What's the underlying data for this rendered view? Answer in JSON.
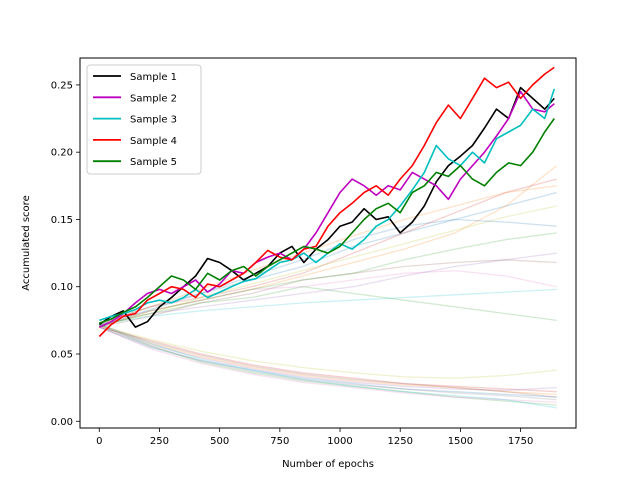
{
  "chart_data": {
    "type": "line",
    "xlabel": "Number of epochs",
    "ylabel": "Accumulated score",
    "xlim": [
      -80,
      1980
    ],
    "ylim": [
      -0.005,
      0.27
    ],
    "xticks": [
      0,
      250,
      500,
      750,
      1000,
      1250,
      1500,
      1750
    ],
    "yticks": [
      0.0,
      0.05,
      0.1,
      0.15,
      0.2,
      0.25
    ],
    "legend_position": "top-left",
    "grid": false,
    "series": [
      {
        "name": "Sample 1",
        "color": "#000000",
        "x": [
          0,
          50,
          100,
          150,
          200,
          250,
          300,
          350,
          400,
          450,
          500,
          550,
          600,
          650,
          700,
          750,
          800,
          850,
          900,
          950,
          1000,
          1050,
          1100,
          1150,
          1200,
          1250,
          1300,
          1350,
          1400,
          1450,
          1500,
          1550,
          1600,
          1650,
          1700,
          1750,
          1800,
          1850,
          1890
        ],
        "values": [
          0.072,
          0.078,
          0.082,
          0.07,
          0.074,
          0.085,
          0.092,
          0.1,
          0.108,
          0.121,
          0.118,
          0.112,
          0.105,
          0.11,
          0.115,
          0.125,
          0.13,
          0.118,
          0.128,
          0.135,
          0.145,
          0.148,
          0.158,
          0.15,
          0.152,
          0.14,
          0.148,
          0.16,
          0.178,
          0.19,
          0.197,
          0.205,
          0.218,
          0.232,
          0.225,
          0.248,
          0.24,
          0.232,
          0.24
        ]
      },
      {
        "name": "Sample 2",
        "color": "#bf00bf",
        "x": [
          0,
          50,
          100,
          150,
          200,
          250,
          300,
          350,
          400,
          450,
          500,
          550,
          600,
          650,
          700,
          750,
          800,
          850,
          900,
          950,
          1000,
          1050,
          1100,
          1150,
          1200,
          1250,
          1300,
          1350,
          1400,
          1450,
          1500,
          1550,
          1600,
          1650,
          1700,
          1750,
          1800,
          1850,
          1890
        ],
        "values": [
          0.07,
          0.074,
          0.08,
          0.088,
          0.095,
          0.098,
          0.095,
          0.1,
          0.105,
          0.096,
          0.102,
          0.112,
          0.11,
          0.118,
          0.122,
          0.125,
          0.12,
          0.128,
          0.14,
          0.155,
          0.17,
          0.18,
          0.175,
          0.168,
          0.175,
          0.172,
          0.185,
          0.18,
          0.175,
          0.165,
          0.18,
          0.19,
          0.2,
          0.212,
          0.225,
          0.245,
          0.232,
          0.23,
          0.236
        ]
      },
      {
        "name": "Sample 3",
        "color": "#00bfbf",
        "x": [
          0,
          50,
          100,
          150,
          200,
          250,
          300,
          350,
          400,
          450,
          500,
          550,
          600,
          650,
          700,
          750,
          800,
          850,
          900,
          950,
          1000,
          1050,
          1100,
          1150,
          1200,
          1250,
          1300,
          1350,
          1400,
          1450,
          1500,
          1550,
          1600,
          1650,
          1700,
          1750,
          1800,
          1850,
          1890
        ],
        "values": [
          0.075,
          0.078,
          0.08,
          0.083,
          0.088,
          0.09,
          0.088,
          0.092,
          0.098,
          0.092,
          0.096,
          0.1,
          0.104,
          0.106,
          0.112,
          0.118,
          0.12,
          0.125,
          0.118,
          0.125,
          0.132,
          0.128,
          0.135,
          0.145,
          0.15,
          0.16,
          0.172,
          0.185,
          0.205,
          0.195,
          0.19,
          0.2,
          0.192,
          0.21,
          0.215,
          0.22,
          0.232,
          0.225,
          0.247
        ]
      },
      {
        "name": "Sample 4",
        "color": "#ff0000",
        "x": [
          0,
          50,
          100,
          150,
          200,
          250,
          300,
          350,
          400,
          450,
          500,
          550,
          600,
          650,
          700,
          750,
          800,
          850,
          900,
          950,
          1000,
          1050,
          1100,
          1150,
          1200,
          1250,
          1300,
          1350,
          1400,
          1450,
          1500,
          1550,
          1600,
          1650,
          1700,
          1750,
          1800,
          1850,
          1890
        ],
        "values": [
          0.063,
          0.072,
          0.078,
          0.08,
          0.09,
          0.095,
          0.1,
          0.098,
          0.092,
          0.102,
          0.1,
          0.105,
          0.11,
          0.118,
          0.127,
          0.122,
          0.12,
          0.128,
          0.13,
          0.145,
          0.155,
          0.162,
          0.17,
          0.175,
          0.168,
          0.18,
          0.19,
          0.205,
          0.222,
          0.235,
          0.225,
          0.24,
          0.255,
          0.248,
          0.252,
          0.24,
          0.25,
          0.258,
          0.263
        ]
      },
      {
        "name": "Sample 5",
        "color": "#008000",
        "x": [
          0,
          50,
          100,
          150,
          200,
          250,
          300,
          350,
          400,
          450,
          500,
          550,
          600,
          650,
          700,
          750,
          800,
          850,
          900,
          950,
          1000,
          1050,
          1100,
          1150,
          1200,
          1250,
          1300,
          1350,
          1400,
          1450,
          1500,
          1550,
          1600,
          1650,
          1700,
          1750,
          1800,
          1850,
          1890
        ],
        "values": [
          0.073,
          0.076,
          0.081,
          0.085,
          0.092,
          0.1,
          0.108,
          0.105,
          0.098,
          0.11,
          0.105,
          0.112,
          0.115,
          0.108,
          0.115,
          0.12,
          0.125,
          0.13,
          0.128,
          0.125,
          0.13,
          0.14,
          0.15,
          0.158,
          0.162,
          0.155,
          0.17,
          0.175,
          0.185,
          0.182,
          0.19,
          0.18,
          0.175,
          0.185,
          0.192,
          0.19,
          0.2,
          0.215,
          0.225
        ]
      }
    ],
    "background_series": [
      {
        "color": "#1f77b4",
        "values": [
          0.072,
          0.085,
          0.095,
          0.105,
          0.115,
          0.13,
          0.14,
          0.15,
          0.16,
          0.17
        ]
      },
      {
        "color": "#ff7f0e",
        "values": [
          0.07,
          0.082,
          0.09,
          0.098,
          0.108,
          0.118,
          0.128,
          0.14,
          0.16,
          0.19
        ]
      },
      {
        "color": "#2ca02c",
        "values": [
          0.071,
          0.08,
          0.088,
          0.092,
          0.1,
          0.095,
          0.09,
          0.085,
          0.08,
          0.075
        ]
      },
      {
        "color": "#d62728",
        "values": [
          0.073,
          0.085,
          0.092,
          0.1,
          0.11,
          0.125,
          0.14,
          0.155,
          0.17,
          0.18
        ]
      },
      {
        "color": "#9467bd",
        "values": [
          0.072,
          0.08,
          0.085,
          0.09,
          0.095,
          0.1,
          0.108,
          0.115,
          0.12,
          0.125
        ]
      },
      {
        "color": "#8c564b",
        "values": [
          0.07,
          0.078,
          0.088,
          0.095,
          0.105,
          0.11,
          0.115,
          0.118,
          0.12,
          0.118
        ]
      },
      {
        "color": "#e377c2",
        "values": [
          0.073,
          0.082,
          0.09,
          0.098,
          0.1,
          0.105,
          0.11,
          0.112,
          0.108,
          0.1
        ]
      },
      {
        "color": "#bcbd22",
        "values": [
          0.071,
          0.08,
          0.092,
          0.102,
          0.112,
          0.122,
          0.132,
          0.142,
          0.152,
          0.16
        ]
      },
      {
        "color": "#17becf",
        "values": [
          0.072,
          0.078,
          0.082,
          0.085,
          0.088,
          0.09,
          0.092,
          0.094,
          0.096,
          0.098
        ]
      },
      {
        "color": "#1f77b4",
        "values": [
          0.071,
          0.083,
          0.095,
          0.108,
          0.12,
          0.135,
          0.145,
          0.15,
          0.148,
          0.145
        ]
      },
      {
        "color": "#ff7f0e",
        "values": [
          0.072,
          0.085,
          0.098,
          0.112,
          0.125,
          0.138,
          0.15,
          0.16,
          0.17,
          0.175
        ]
      },
      {
        "color": "#2ca02c",
        "values": [
          0.07,
          0.082,
          0.09,
          0.098,
          0.105,
          0.11,
          0.12,
          0.128,
          0.135,
          0.14
        ]
      },
      {
        "color": "#1f77b4",
        "values": [
          0.07,
          0.055,
          0.045,
          0.038,
          0.032,
          0.028,
          0.024,
          0.022,
          0.02,
          0.018
        ]
      },
      {
        "color": "#ff7f0e",
        "values": [
          0.071,
          0.058,
          0.048,
          0.04,
          0.034,
          0.03,
          0.027,
          0.025,
          0.022,
          0.02
        ]
      },
      {
        "color": "#2ca02c",
        "values": [
          0.072,
          0.056,
          0.044,
          0.036,
          0.03,
          0.026,
          0.022,
          0.018,
          0.015,
          0.012
        ]
      },
      {
        "color": "#d62728",
        "values": [
          0.07,
          0.06,
          0.05,
          0.042,
          0.036,
          0.032,
          0.028,
          0.026,
          0.024,
          0.022
        ]
      },
      {
        "color": "#9467bd",
        "values": [
          0.071,
          0.057,
          0.047,
          0.039,
          0.033,
          0.029,
          0.026,
          0.024,
          0.023,
          0.025
        ]
      },
      {
        "color": "#8c564b",
        "values": [
          0.072,
          0.059,
          0.049,
          0.041,
          0.035,
          0.031,
          0.028,
          0.025,
          0.022,
          0.018
        ]
      },
      {
        "color": "#e377c2",
        "values": [
          0.07,
          0.054,
          0.043,
          0.035,
          0.029,
          0.025,
          0.021,
          0.018,
          0.016,
          0.014
        ]
      },
      {
        "color": "#bcbd22",
        "values": [
          0.071,
          0.061,
          0.052,
          0.045,
          0.04,
          0.036,
          0.033,
          0.032,
          0.034,
          0.038
        ]
      },
      {
        "color": "#17becf",
        "values": [
          0.072,
          0.058,
          0.046,
          0.038,
          0.031,
          0.026,
          0.022,
          0.019,
          0.016,
          0.01
        ]
      },
      {
        "color": "#7f7f7f",
        "values": [
          0.07,
          0.056,
          0.045,
          0.037,
          0.031,
          0.027,
          0.024,
          0.021,
          0.019,
          0.016
        ]
      }
    ]
  }
}
